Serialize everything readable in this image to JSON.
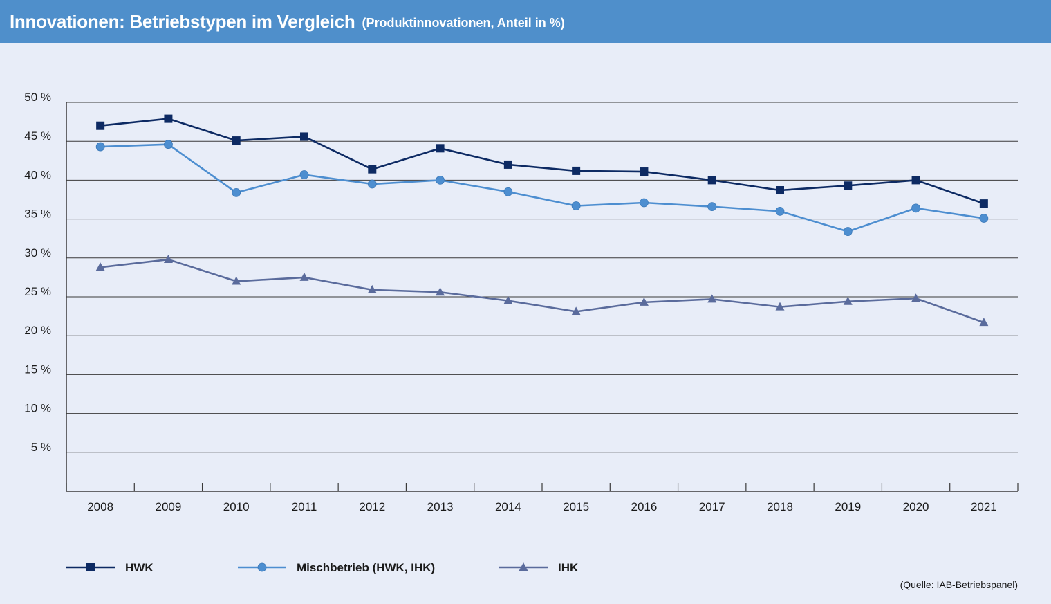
{
  "header": {
    "title": "Innovationen: Betriebstypen im Vergleich",
    "subtitle": "(Produktinnovationen, Anteil in %)"
  },
  "source": "(Quelle: IAB-Betriebspanel)",
  "colors": {
    "header_bg": "#4f8fcb",
    "background": "#e8edf8",
    "hwk": "#0d2a63",
    "misch": "#4d8ed0",
    "ihk": "#5a6b9c",
    "grid": "#3a3a3a"
  },
  "chart_data": {
    "type": "line",
    "title": "Innovationen: Betriebstypen im Vergleich",
    "subtitle": "(Produktinnovationen, Anteil in %)",
    "categories": [
      "2008",
      "2009",
      "2010",
      "2011",
      "2012",
      "2013",
      "2014",
      "2015",
      "2016",
      "2017",
      "2018",
      "2019",
      "2020",
      "2021"
    ],
    "y_ticks": [
      {
        "value": 5,
        "label": "5 %"
      },
      {
        "value": 10,
        "label": "10 %"
      },
      {
        "value": 15,
        "label": "15 %"
      },
      {
        "value": 20,
        "label": "20 %"
      },
      {
        "value": 25,
        "label": "25 %"
      },
      {
        "value": 30,
        "label": "30 %"
      },
      {
        "value": 35,
        "label": "35 %"
      },
      {
        "value": 40,
        "label": "40 %"
      },
      {
        "value": 45,
        "label": "45 %"
      },
      {
        "value": 50,
        "label": "50 %"
      }
    ],
    "ylim": [
      0,
      50
    ],
    "grid": true,
    "legend_position": "bottom",
    "series": [
      {
        "name": "HWK",
        "marker": "square",
        "color": "#0d2a63",
        "values": [
          47.0,
          47.9,
          45.1,
          45.6,
          41.4,
          44.1,
          42.0,
          41.2,
          41.1,
          40.0,
          38.7,
          39.3,
          40.0,
          37.0
        ]
      },
      {
        "name": "Mischbetrieb (HWK, IHK)",
        "marker": "circle",
        "color": "#4d8ed0",
        "values": [
          44.3,
          44.6,
          38.4,
          40.7,
          39.5,
          40.0,
          38.5,
          36.7,
          37.1,
          36.6,
          36.0,
          33.4,
          36.4,
          35.1
        ]
      },
      {
        "name": "IHK",
        "marker": "triangle",
        "color": "#5a6b9c",
        "values": [
          28.8,
          29.8,
          27.0,
          27.5,
          25.9,
          25.6,
          24.5,
          23.1,
          24.3,
          24.7,
          23.7,
          24.4,
          24.8,
          21.7
        ]
      }
    ]
  }
}
